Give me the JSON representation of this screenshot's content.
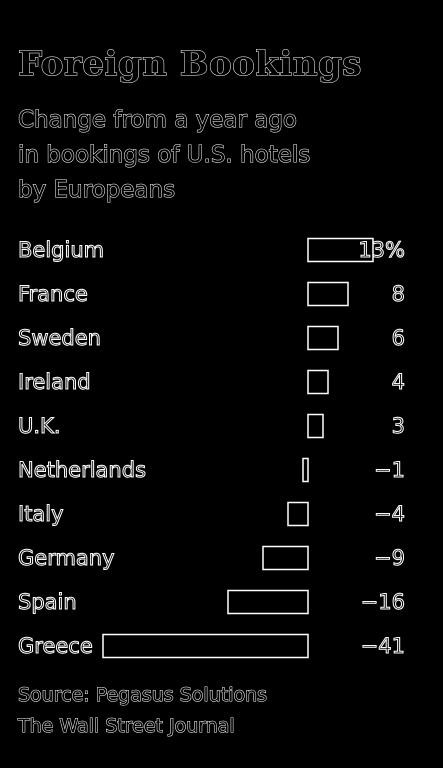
{
  "chart_data": {
    "type": "bar",
    "orientation": "horizontal",
    "title": "Foreign Bookings",
    "subtitle_lines": [
      "Change from a year ago",
      "in bookings of U.S. hotels",
      "by Europeans"
    ],
    "categories": [
      "Belgium",
      "France",
      "Sweden",
      "Ireland",
      "U.K.",
      "Netherlands",
      "Italy",
      "Germany",
      "Spain",
      "Greece"
    ],
    "values": [
      13,
      8,
      6,
      4,
      3,
      -1,
      -4,
      -9,
      -16,
      -41
    ],
    "value_labels": [
      "13%",
      "8",
      "6",
      "4",
      "3",
      "−1",
      "−4",
      "−9",
      "−16",
      "−41"
    ],
    "xlim": [
      -41,
      13
    ],
    "xlabel": "",
    "ylabel": "",
    "grid": false,
    "legend": "none"
  },
  "footer": {
    "source": "Source: Pegasus Solutions",
    "publication": "The Wall Street Journal"
  },
  "colors": {
    "background": "#000000",
    "foreground": "#ffffff"
  }
}
